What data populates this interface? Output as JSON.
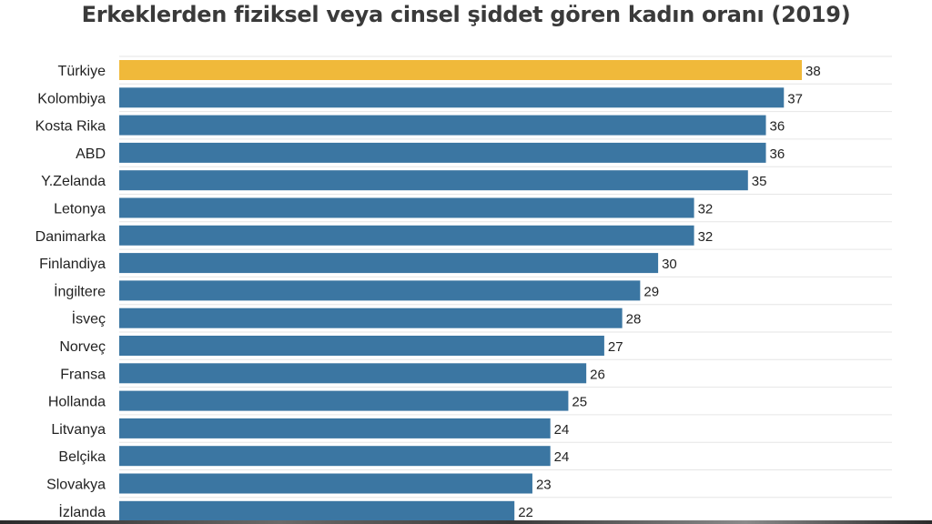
{
  "chart_data": {
    "type": "bar",
    "orientation": "horizontal",
    "title": "Erkeklerden fiziksel veya cinsel şiddet gören kadın oranı (2019)",
    "xlabel": "",
    "ylabel": "",
    "xlim": [
      0,
      38
    ],
    "grid": true,
    "categories": [
      "Türkiye",
      "Kolombiya",
      "Kosta Rika",
      "ABD",
      "Y.Zelanda",
      "Letonya",
      "Danimarka",
      "Finlandiya",
      "İngiltere",
      "İsveç",
      "Norveç",
      "Fransa",
      "Hollanda",
      "Litvanya",
      "Belçika",
      "Slovakya",
      "İzlanda"
    ],
    "values": [
      38,
      37,
      36,
      36,
      35,
      32,
      32,
      30,
      29,
      28,
      27,
      26,
      25,
      24,
      24,
      23,
      22
    ],
    "highlight_index": 0,
    "colors": {
      "highlight": "#f0b93a",
      "bar": "#3b76a2",
      "grid": "#e6e6e6",
      "label": "#222222",
      "title": "#3a3a3a"
    }
  }
}
